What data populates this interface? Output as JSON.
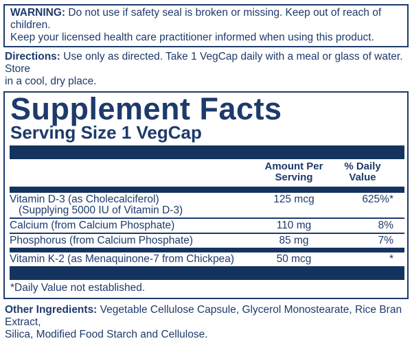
{
  "colors": {
    "navy_text": "#1e3a6b",
    "navy_bar": "#14345f",
    "background": "#ffffff"
  },
  "warning": {
    "label": "WARNING:",
    "text": "Do not use if safety seal is broken or missing. Keep out of reach of children.\nKeep your licensed health care practitioner informed when using this product."
  },
  "directions": {
    "label": "Directions:",
    "text": "Use only as directed. Take 1 VegCap daily with a meal or glass of water. Store\nin a cool, dry place."
  },
  "supplement_facts": {
    "title": "Supplement Facts",
    "serving_size": "Serving Size 1 VegCap",
    "columns": {
      "amount": "Amount Per Serving",
      "daily_value": "% Daily Value"
    },
    "rows": [
      {
        "name": "Vitamin D-3 (as Cholecalciferol)",
        "name_sub": "(Supplying 5000 IU of Vitamin D-3)",
        "amount": "125 mcg",
        "daily_value": "625%*"
      },
      {
        "name": "Calcium (from Calcium Phosphate)",
        "name_sub": "",
        "amount": "110 mg",
        "daily_value": "8%"
      },
      {
        "name": "Phosphorus (from Calcium Phosphate)",
        "name_sub": "",
        "amount": "85 mg",
        "daily_value": "7%"
      },
      {
        "name": "Vitamin K-2 (as Menaquinone-7 from Chickpea)",
        "name_sub": "",
        "amount": "50 mcg",
        "daily_value": "*"
      }
    ],
    "footnote": "*Daily Value not established."
  },
  "other_ingredients": {
    "label": "Other Ingredients:",
    "text": "Vegetable Cellulose Capsule, Glycerol Monostearate, Rice Bran Extract,\nSilica, Modified Food Starch and Cellulose."
  }
}
